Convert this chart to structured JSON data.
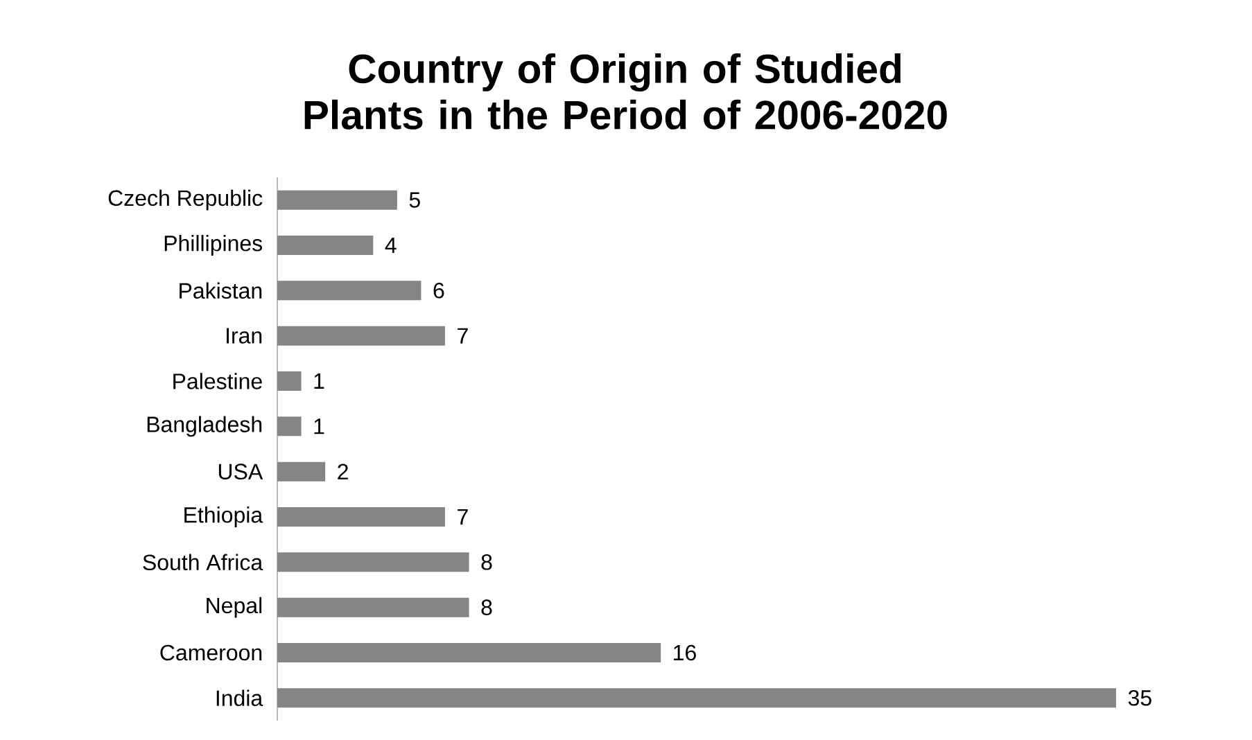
{
  "chart_data": {
    "type": "bar",
    "orientation": "horizontal",
    "title": "Country of Origin of Studied Plants in the Period of 2006-2020",
    "categories": [
      "Czech Republic",
      "Phillipines",
      "Pakistan",
      "Iran",
      "Palestine",
      "Bangladesh",
      "USA",
      "Ethiopia",
      "South Africa",
      "Nepal",
      "Cameroon",
      "India"
    ],
    "values": [
      5,
      4,
      6,
      7,
      1,
      1,
      2,
      7,
      8,
      8,
      16,
      35
    ],
    "color": "#858585",
    "data_labels": true
  }
}
